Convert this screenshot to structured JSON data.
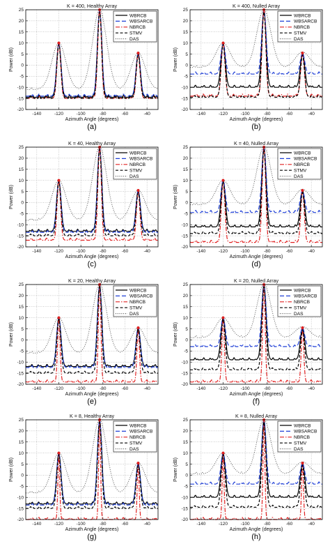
{
  "figure": {
    "caption_fragment": ""
  },
  "chart_data": [
    {
      "type": "line",
      "title": "K = 400, Healthy Array",
      "panel_label": "(a)",
      "xlabel": "Azimuth Angle (degrees)",
      "ylabel": "Power (dB)",
      "xlim": [
        -150,
        -30
      ],
      "ylim": [
        -20,
        25
      ],
      "xticks": [
        -140,
        -120,
        -100,
        -80,
        -60,
        -40
      ],
      "yticks": [
        -20,
        -15,
        -10,
        -5,
        0,
        5,
        10,
        15,
        20,
        25
      ],
      "legend_position": "top-right",
      "grid": true,
      "peaks": [
        -120,
        -83,
        -48
      ],
      "series": [
        {
          "name": "WBRCB",
          "style": "solid",
          "color": "#000000",
          "floor": -14.5,
          "peaks": [
            10,
            25,
            5.5
          ],
          "width": 2.8
        },
        {
          "name": "WBSARCB",
          "style": "dash",
          "color": "#1f3fd6",
          "floor": -14,
          "peaks": [
            10,
            25,
            5.5
          ],
          "width": 2.8
        },
        {
          "name": "NBRCB",
          "style": "dashdot",
          "color": "#e02020",
          "floor": -15,
          "peaks": [
            10,
            25,
            5
          ],
          "width": 2.4
        },
        {
          "name": "STMV",
          "style": "dashed",
          "color": "#000000",
          "floor": -15,
          "peaks": [
            9.5,
            24,
            4.5
          ],
          "width": 2.6
        },
        {
          "name": "DAS",
          "style": "dotted",
          "color": "#555555",
          "floor": -11,
          "peaks": [
            10,
            25,
            5.5
          ],
          "width": 9
        }
      ]
    },
    {
      "type": "line",
      "title": "K = 400, Nulled Array",
      "panel_label": "(b)",
      "xlabel": "Azimuth Angle (degrees)",
      "ylabel": "Power (dB)",
      "xlim": [
        -150,
        -30
      ],
      "ylim": [
        -20,
        25
      ],
      "xticks": [
        -140,
        -120,
        -100,
        -80,
        -60,
        -40
      ],
      "yticks": [
        -20,
        -15,
        -10,
        -5,
        0,
        5,
        10,
        15,
        20,
        25
      ],
      "legend_position": "top-right",
      "grid": true,
      "peaks": [
        -120,
        -83,
        -48
      ],
      "series": [
        {
          "name": "WBRCB",
          "style": "solid",
          "color": "#000000",
          "floor": -10,
          "peaks": [
            10,
            25,
            5.5
          ],
          "width": 2.8
        },
        {
          "name": "WBSARCB",
          "style": "dash",
          "color": "#1f3fd6",
          "floor": -4,
          "peaks": [
            10,
            25,
            5.5
          ],
          "width": 2.8
        },
        {
          "name": "NBRCB",
          "style": "dashdot",
          "color": "#e02020",
          "floor": -14,
          "peaks": [
            10,
            25,
            5
          ],
          "width": 2.4
        },
        {
          "name": "STMV",
          "style": "dashed",
          "color": "#000000",
          "floor": -14.5,
          "peaks": [
            9.5,
            24,
            4.5
          ],
          "width": 2.6
        },
        {
          "name": "DAS",
          "style": "dotted",
          "color": "#555555",
          "floor": -1,
          "peaks": [
            10,
            25,
            6
          ],
          "width": 9
        }
      ]
    },
    {
      "type": "line",
      "title": "K = 40, Healthy Array",
      "panel_label": "(c)",
      "xlabel": "Azimuth Angle (degrees)",
      "ylabel": "Power (dB)",
      "xlim": [
        -150,
        -30
      ],
      "ylim": [
        -20,
        25
      ],
      "xticks": [
        -140,
        -120,
        -100,
        -80,
        -60,
        -40
      ],
      "yticks": [
        -20,
        -15,
        -10,
        -5,
        0,
        5,
        10,
        15,
        20,
        25
      ],
      "legend_position": "top-right",
      "grid": true,
      "peaks": [
        -120,
        -83,
        -48
      ],
      "series": [
        {
          "name": "WBRCB",
          "style": "solid",
          "color": "#000000",
          "floor": -13,
          "peaks": [
            10,
            25,
            5.5
          ],
          "width": 2.8
        },
        {
          "name": "WBSARCB",
          "style": "dash",
          "color": "#1f3fd6",
          "floor": -13.5,
          "peaks": [
            10,
            25,
            5.5
          ],
          "width": 2.8
        },
        {
          "name": "NBRCB",
          "style": "dashdot",
          "color": "#e02020",
          "floor": -17,
          "peaks": [
            10,
            25,
            5
          ],
          "width": 2.2
        },
        {
          "name": "STMV",
          "style": "dashed",
          "color": "#000000",
          "floor": -15,
          "peaks": [
            9.5,
            24,
            4.5
          ],
          "width": 2.6
        },
        {
          "name": "DAS",
          "style": "dotted",
          "color": "#555555",
          "floor": -8,
          "peaks": [
            10,
            25,
            5.5
          ],
          "width": 9
        }
      ]
    },
    {
      "type": "line",
      "title": "K = 40, Nulled Array",
      "panel_label": "(d)",
      "xlabel": "Azimuth Angle (degrees)",
      "ylabel": "Power (dB)",
      "xlim": [
        -150,
        -30
      ],
      "ylim": [
        -20,
        25
      ],
      "xticks": [
        -140,
        -120,
        -100,
        -80,
        -60,
        -40
      ],
      "yticks": [
        -20,
        -15,
        -10,
        -5,
        0,
        5,
        10,
        15,
        20,
        25
      ],
      "legend_position": "top-right",
      "grid": true,
      "peaks": [
        -120,
        -83,
        -48
      ],
      "series": [
        {
          "name": "WBRCB",
          "style": "solid",
          "color": "#000000",
          "floor": -11,
          "peaks": [
            10,
            25,
            5.5
          ],
          "width": 2.8
        },
        {
          "name": "WBSARCB",
          "style": "dash",
          "color": "#1f3fd6",
          "floor": -4.5,
          "peaks": [
            10,
            25,
            5.5
          ],
          "width": 2.8
        },
        {
          "name": "NBRCB",
          "style": "dashdot",
          "color": "#e02020",
          "floor": -18,
          "peaks": [
            10,
            25,
            5
          ],
          "width": 2.2
        },
        {
          "name": "STMV",
          "style": "dashed",
          "color": "#000000",
          "floor": -14,
          "peaks": [
            9.5,
            24,
            4.5
          ],
          "width": 2.6
        },
        {
          "name": "DAS",
          "style": "dotted",
          "color": "#555555",
          "floor": -1,
          "peaks": [
            10,
            25,
            6
          ],
          "width": 9
        }
      ]
    },
    {
      "type": "line",
      "title": "K = 20, Healthy Array",
      "panel_label": "(e)",
      "xlabel": "Azimuth Angle (degrees)",
      "ylabel": "Power (dB)",
      "xlim": [
        -150,
        -30
      ],
      "ylim": [
        -20,
        25
      ],
      "xticks": [
        -140,
        -120,
        -100,
        -80,
        -60,
        -40
      ],
      "yticks": [
        -20,
        -15,
        -10,
        -5,
        0,
        5,
        10,
        15,
        20,
        25
      ],
      "legend_position": "top-right",
      "grid": true,
      "peaks": [
        -120,
        -83,
        -48
      ],
      "series": [
        {
          "name": "WBRCB",
          "style": "solid",
          "color": "#000000",
          "floor": -12,
          "peaks": [
            10,
            25,
            5.5
          ],
          "width": 2.8
        },
        {
          "name": "WBSARCB",
          "style": "dash",
          "color": "#1f3fd6",
          "floor": -12.5,
          "peaks": [
            10,
            25,
            5.5
          ],
          "width": 2.8
        },
        {
          "name": "NBRCB",
          "style": "dashdot",
          "color": "#e02020",
          "floor": -19,
          "peaks": [
            10,
            25,
            5
          ],
          "width": 1.6
        },
        {
          "name": "STMV",
          "style": "dashed",
          "color": "#000000",
          "floor": -15,
          "peaks": [
            9.5,
            24,
            4.5
          ],
          "width": 2.6
        },
        {
          "name": "DAS",
          "style": "dotted",
          "color": "#555555",
          "floor": -6,
          "peaks": [
            10,
            25,
            5.5
          ],
          "width": 9
        }
      ]
    },
    {
      "type": "line",
      "title": "K = 20, Nulled Array",
      "panel_label": "(f)",
      "xlabel": "Azimuth Angle (degrees)",
      "ylabel": "Power (dB)",
      "xlim": [
        -150,
        -30
      ],
      "ylim": [
        -20,
        25
      ],
      "xticks": [
        -140,
        -120,
        -100,
        -80,
        -60,
        -40
      ],
      "yticks": [
        -20,
        -15,
        -10,
        -5,
        0,
        5,
        10,
        15,
        20,
        25
      ],
      "legend_position": "top-right",
      "grid": true,
      "peaks": [
        -120,
        -83,
        -48
      ],
      "series": [
        {
          "name": "WBRCB",
          "style": "solid",
          "color": "#000000",
          "floor": -9,
          "peaks": [
            10,
            25,
            5.5
          ],
          "width": 2.8
        },
        {
          "name": "WBSARCB",
          "style": "dash",
          "color": "#1f3fd6",
          "floor": -3,
          "peaks": [
            10,
            25,
            5.5
          ],
          "width": 2.8
        },
        {
          "name": "NBRCB",
          "style": "dashdot",
          "color": "#e02020",
          "floor": -19,
          "peaks": [
            10,
            25,
            5
          ],
          "width": 1.6
        },
        {
          "name": "STMV",
          "style": "dashed",
          "color": "#000000",
          "floor": -13.5,
          "peaks": [
            9.5,
            24,
            4.5
          ],
          "width": 2.6
        },
        {
          "name": "DAS",
          "style": "dotted",
          "color": "#555555",
          "floor": 1,
          "peaks": [
            10,
            25,
            6
          ],
          "width": 9
        }
      ]
    },
    {
      "type": "line",
      "title": "K = 8, Healthy Array",
      "panel_label": "(g)",
      "xlabel": "Azimuth Angle (degrees)",
      "ylabel": "Power (dB)",
      "xlim": [
        -150,
        -30
      ],
      "ylim": [
        -20,
        25
      ],
      "xticks": [
        -140,
        -120,
        -100,
        -80,
        -60,
        -40
      ],
      "yticks": [
        -20,
        -15,
        -10,
        -5,
        0,
        5,
        10,
        15,
        20,
        25
      ],
      "legend_position": "top-right",
      "grid": true,
      "peaks": [
        -120,
        -83,
        -48
      ],
      "series": [
        {
          "name": "WBRCB",
          "style": "solid",
          "color": "#000000",
          "floor": -13,
          "peaks": [
            10,
            25,
            5.5
          ],
          "width": 2.8
        },
        {
          "name": "WBSARCB",
          "style": "dash",
          "color": "#1f3fd6",
          "floor": -13.5,
          "peaks": [
            10,
            25,
            5.5
          ],
          "width": 2.8
        },
        {
          "name": "NBRCB",
          "style": "dashdot",
          "color": "#e02020",
          "floor": -20,
          "peaks": [
            10,
            25,
            5
          ],
          "width": 1.2
        },
        {
          "name": "STMV",
          "style": "dashed",
          "color": "#000000",
          "floor": -15,
          "peaks": [
            9.5,
            24,
            4.5
          ],
          "width": 2.6
        },
        {
          "name": "DAS",
          "style": "dotted",
          "color": "#555555",
          "floor": -8,
          "peaks": [
            10,
            25,
            5.5
          ],
          "width": 9
        }
      ]
    },
    {
      "type": "line",
      "title": "K = 8, Nulled Array",
      "panel_label": "(h)",
      "xlabel": "Azimuth Angle (degrees)",
      "ylabel": "Power (dB)",
      "xlim": [
        -150,
        -30
      ],
      "ylim": [
        -20,
        25
      ],
      "xticks": [
        -140,
        -120,
        -100,
        -80,
        -60,
        -40
      ],
      "yticks": [
        -20,
        -15,
        -10,
        -5,
        0,
        5,
        10,
        15,
        20,
        25
      ],
      "legend_position": "top-right",
      "grid": true,
      "peaks": [
        -120,
        -83,
        -48
      ],
      "series": [
        {
          "name": "WBRCB",
          "style": "solid",
          "color": "#000000",
          "floor": -10,
          "peaks": [
            10,
            25,
            5.5
          ],
          "width": 2.8
        },
        {
          "name": "WBSARCB",
          "style": "dash",
          "color": "#1f3fd6",
          "floor": -4,
          "peaks": [
            10,
            25,
            5.5
          ],
          "width": 2.8
        },
        {
          "name": "NBRCB",
          "style": "dashdot",
          "color": "#e02020",
          "floor": -20,
          "peaks": [
            10,
            25,
            5
          ],
          "width": 1.2
        },
        {
          "name": "STMV",
          "style": "dashed",
          "color": "#000000",
          "floor": -14.5,
          "peaks": [
            9.5,
            24,
            4.5
          ],
          "width": 2.6
        },
        {
          "name": "DAS",
          "style": "dotted",
          "color": "#555555",
          "floor": 0.5,
          "peaks": [
            10,
            25,
            6
          ],
          "width": 9
        }
      ]
    }
  ]
}
